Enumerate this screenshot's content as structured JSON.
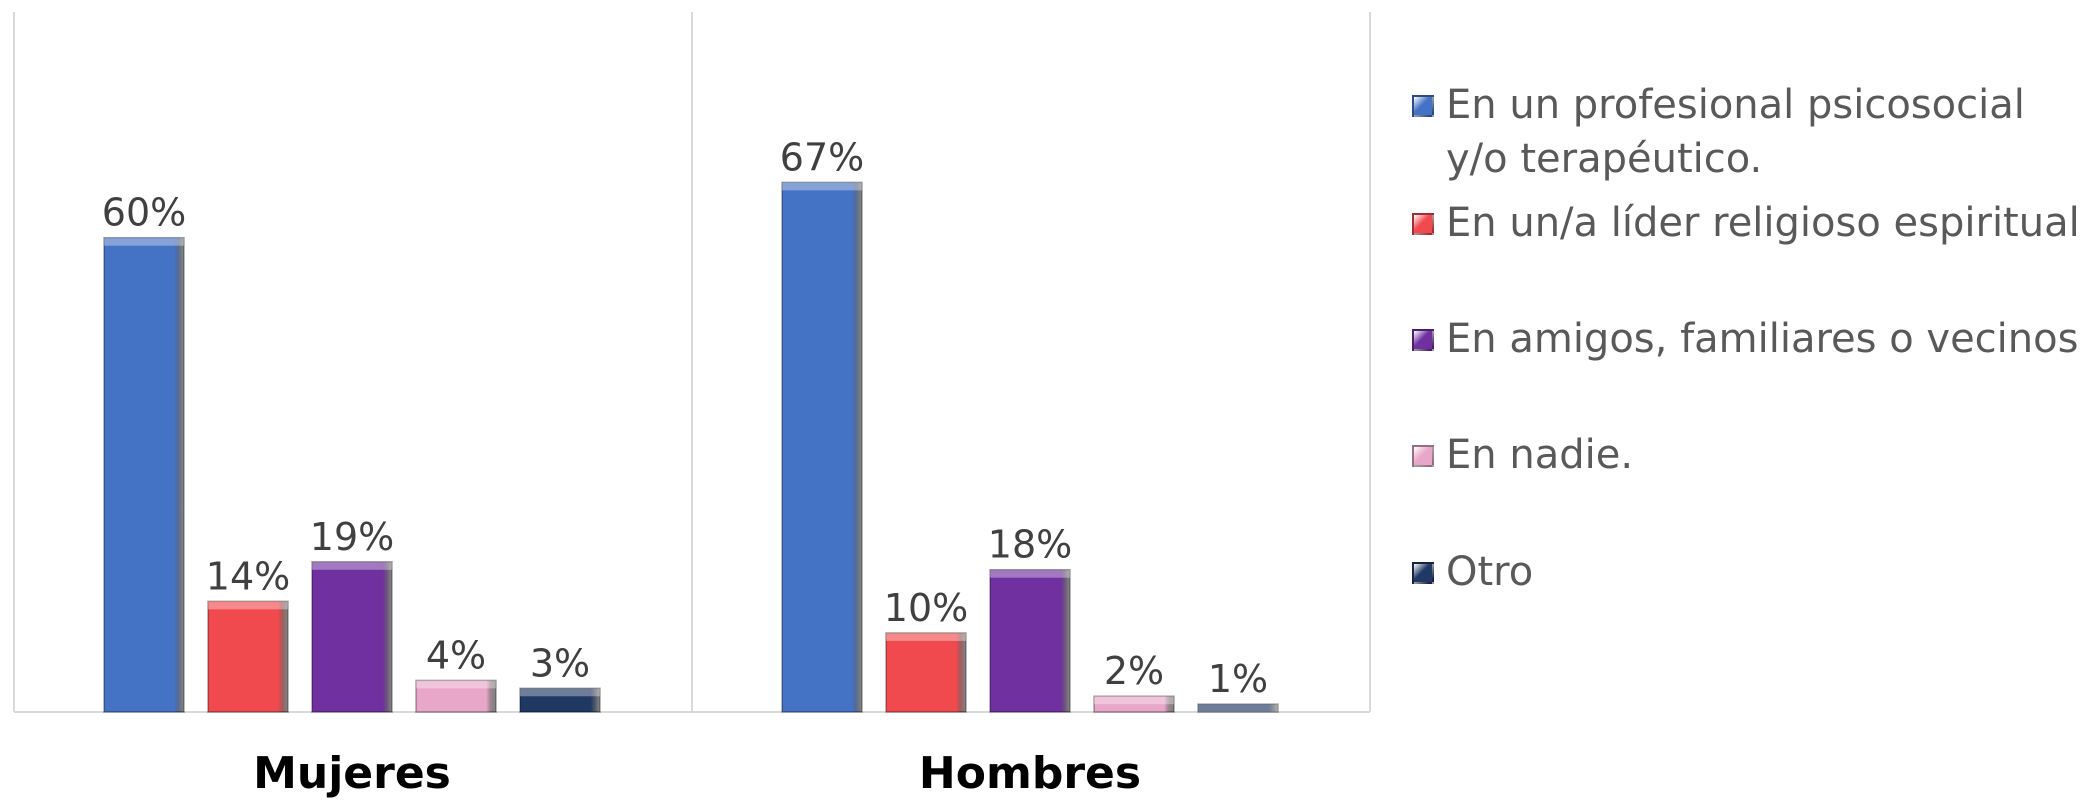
{
  "chart_data": {
    "type": "bar",
    "categories": [
      "Mujeres",
      "Hombres"
    ],
    "series": [
      {
        "name": "En un profesional psicosocial y/o terapéutico.",
        "color": "#4472C4",
        "values": [
          60,
          67
        ],
        "labels": [
          "60%",
          "67%"
        ]
      },
      {
        "name": "En un/a líder religioso espiritual",
        "color": "#F04A4E",
        "values": [
          14,
          10
        ],
        "labels": [
          "14%",
          "10%"
        ]
      },
      {
        "name": "En amigos, familiares o vecinos",
        "color": "#7030A0",
        "values": [
          19,
          18
        ],
        "labels": [
          "19%",
          "18%"
        ]
      },
      {
        "name": "En nadie.",
        "color": "#E8A7C8",
        "values": [
          4,
          2
        ],
        "labels": [
          "4%",
          "2%"
        ]
      },
      {
        "name": "Otro",
        "color": "#1F3864",
        "values": [
          3,
          1
        ],
        "labels": [
          "3%",
          "1%"
        ]
      }
    ],
    "ylim": [
      0,
      80
    ],
    "grid": false,
    "legend": "right"
  }
}
